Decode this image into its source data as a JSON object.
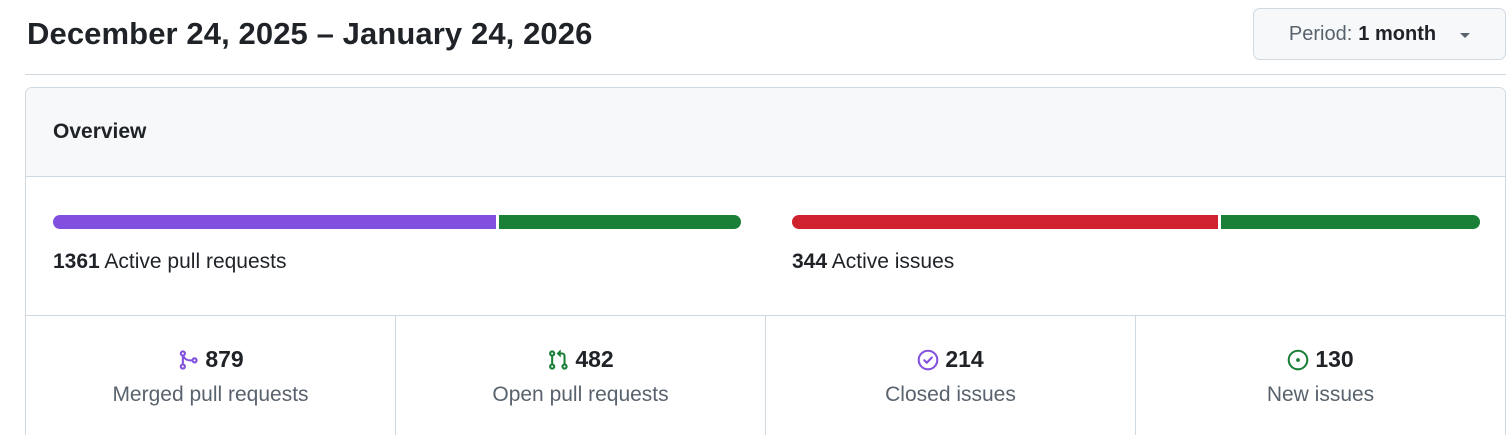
{
  "header": {
    "date_range": "December 24, 2025 – January 24, 2026",
    "period_label": "Period:",
    "period_value": "1 month"
  },
  "overview": {
    "title": "Overview",
    "pull_requests": {
      "count": "1361",
      "label": "Active pull requests",
      "merged_fraction": 0.646,
      "colors": {
        "merged": "#8250df",
        "open": "#1a7f37"
      }
    },
    "issues": {
      "count": "344",
      "label": "Active issues",
      "closed_fraction": 0.622,
      "colors": {
        "closed": "#cf222e",
        "new": "#1a7f37"
      }
    }
  },
  "stats": [
    {
      "icon": "git-merge-icon",
      "value": "879",
      "label": "Merged pull requests",
      "color": "#8250df"
    },
    {
      "icon": "git-pull-request-icon",
      "value": "482",
      "label": "Open pull requests",
      "color": "#1a7f37"
    },
    {
      "icon": "issue-closed-icon",
      "value": "214",
      "label": "Closed issues",
      "color": "#8250df"
    },
    {
      "icon": "issue-opened-icon",
      "value": "130",
      "label": "New issues",
      "color": "#1a7f37"
    }
  ]
}
